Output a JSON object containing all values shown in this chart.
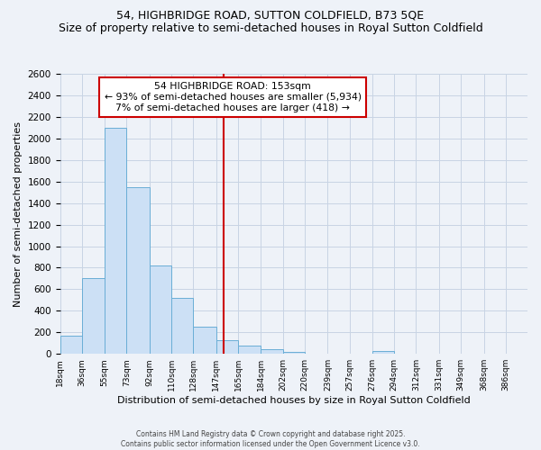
{
  "title": "54, HIGHBRIDGE ROAD, SUTTON COLDFIELD, B73 5QE",
  "subtitle": "Size of property relative to semi-detached houses in Royal Sutton Coldfield",
  "xlabel": "Distribution of semi-detached houses by size in Royal Sutton Coldfield",
  "ylabel": "Number of semi-detached properties",
  "bin_labels": [
    "18sqm",
    "36sqm",
    "55sqm",
    "73sqm",
    "92sqm",
    "110sqm",
    "128sqm",
    "147sqm",
    "165sqm",
    "184sqm",
    "202sqm",
    "220sqm",
    "239sqm",
    "257sqm",
    "276sqm",
    "294sqm",
    "312sqm",
    "331sqm",
    "349sqm",
    "368sqm",
    "386sqm"
  ],
  "bin_edges": [
    18,
    36,
    55,
    73,
    92,
    110,
    128,
    147,
    165,
    184,
    202,
    220,
    239,
    257,
    276,
    294,
    312,
    331,
    349,
    368,
    386
  ],
  "bar_heights": [
    170,
    700,
    2100,
    1550,
    820,
    520,
    255,
    130,
    75,
    45,
    15,
    0,
    0,
    0,
    25,
    0,
    0,
    0,
    0,
    0
  ],
  "bar_color": "#cce0f5",
  "bar_edgecolor": "#6aaed6",
  "grid_color": "#c8d4e4",
  "background_color": "#eef2f8",
  "vline_x": 153,
  "vline_color": "#cc0000",
  "annotation_title": "54 HIGHBRIDGE ROAD: 153sqm",
  "annotation_line1": "← 93% of semi-detached houses are smaller (5,934)",
  "annotation_line2": "7% of semi-detached houses are larger (418) →",
  "annotation_box_facecolor": "#ffffff",
  "annotation_box_edgecolor": "#cc0000",
  "ylim": [
    0,
    2600
  ],
  "yticks": [
    0,
    200,
    400,
    600,
    800,
    1000,
    1200,
    1400,
    1600,
    1800,
    2000,
    2200,
    2400,
    2600
  ],
  "footnote1": "Contains HM Land Registry data © Crown copyright and database right 2025.",
  "footnote2": "Contains public sector information licensed under the Open Government Licence v3.0."
}
